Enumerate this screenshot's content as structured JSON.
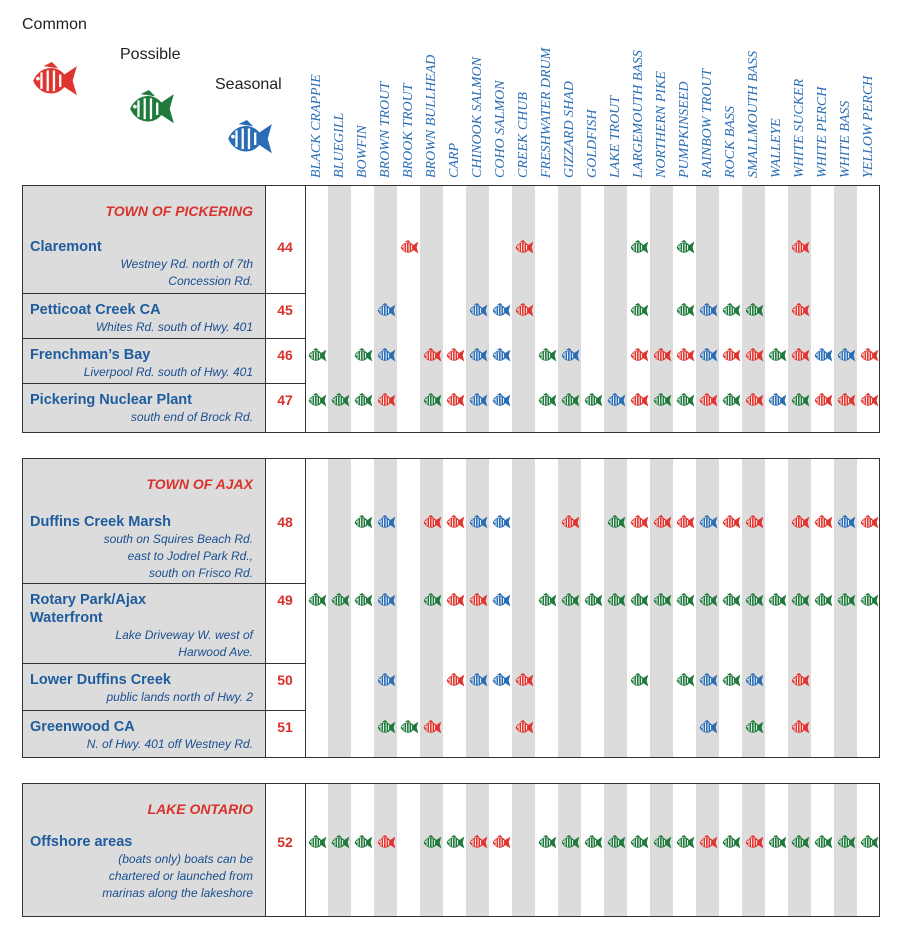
{
  "legend": [
    {
      "label": "Common",
      "color": "#e0352f"
    },
    {
      "label": "Possible",
      "color": "#1f7a3c"
    },
    {
      "label": "Seasonal",
      "color": "#2a6db4"
    }
  ],
  "species": [
    "BLACK CRAPPIE",
    "BLUEGILL",
    "BOWFIN",
    "BROWN TROUT",
    "BROOK TROUT",
    "BROWN BULLHEAD",
    "CARP",
    "CHINOOK SALMON",
    "COHO SALMON",
    "CREEK CHUB",
    "FRESHWATER DRUM",
    "GIZZARD SHAD",
    "GOLDFISH",
    "LAKE TROUT",
    "LARGEMOUTH BASS",
    "NORTHERN PIKE",
    "PUMPKINSEED",
    "RAINBOW TROUT",
    "ROCK BASS",
    "SMALLMOUTH BASS",
    "WALLEYE",
    "WHITE SUCKER",
    "WHITE PERCH",
    "WHITE BASS",
    "YELLOW PERCH"
  ],
  "sections": [
    {
      "title": "TOWN OF PICKERING",
      "rows": [
        {
          "name": [
            "Claremont"
          ],
          "description": [
            "Westney Rd. north of 7th",
            "Concession Rd."
          ],
          "number": 44,
          "fish": [
            null,
            null,
            null,
            null,
            "Common",
            null,
            null,
            null,
            null,
            "Common",
            null,
            null,
            null,
            null,
            "Possible",
            null,
            "Possible",
            null,
            null,
            null,
            null,
            "Common",
            null,
            null,
            null
          ]
        },
        {
          "name": [
            "Petticoat Creek CA"
          ],
          "description": [
            "Whites Rd. south of Hwy. 401"
          ],
          "number": 45,
          "fish": [
            null,
            null,
            null,
            "Seasonal",
            null,
            null,
            null,
            "Seasonal",
            "Seasonal",
            "Common",
            null,
            null,
            null,
            null,
            "Possible",
            null,
            "Possible",
            "Seasonal",
            "Possible",
            "Possible",
            null,
            "Common",
            null,
            null,
            null
          ]
        },
        {
          "name": [
            "Frenchman’s Bay"
          ],
          "description": [
            "Liverpool Rd. south of Hwy. 401"
          ],
          "number": 46,
          "fish": [
            "Possible",
            null,
            "Possible",
            "Seasonal",
            null,
            "Common",
            "Common",
            "Seasonal",
            "Seasonal",
            null,
            "Possible",
            "Seasonal",
            null,
            null,
            "Common",
            "Common",
            "Common",
            "Seasonal",
            "Common",
            "Common",
            "Possible",
            "Common",
            "Seasonal",
            "Seasonal",
            "Common"
          ]
        },
        {
          "name": [
            "Pickering Nuclear Plant"
          ],
          "description": [
            "south end of Brock Rd."
          ],
          "number": 47,
          "fish": [
            "Possible",
            "Possible",
            "Possible",
            "Common",
            null,
            "Possible",
            "Common",
            "Seasonal",
            "Seasonal",
            null,
            "Possible",
            "Possible",
            "Possible",
            "Seasonal",
            "Common",
            "Possible",
            "Possible",
            "Common",
            "Possible",
            "Common",
            "Seasonal",
            "Possible",
            "Common",
            "Common",
            "Common"
          ]
        }
      ]
    },
    {
      "title": "TOWN OF AJAX",
      "rows": [
        {
          "name": [
            "Duffins Creek Marsh"
          ],
          "description": [
            "south on Squires Beach Rd.",
            "east to Jodrel Park Rd.,",
            "south on Frisco Rd."
          ],
          "number": 48,
          "fish": [
            null,
            null,
            "Possible",
            "Seasonal",
            null,
            "Common",
            "Common",
            "Seasonal",
            "Seasonal",
            null,
            null,
            "Common",
            null,
            "Possible",
            "Common",
            "Common",
            "Common",
            "Seasonal",
            "Common",
            "Common",
            null,
            "Common",
            "Common",
            "Seasonal",
            "Common"
          ]
        },
        {
          "name": [
            "Rotary Park/Ajax",
            "Waterfront"
          ],
          "description": [
            "Lake Driveway W. west of",
            "Harwood Ave."
          ],
          "number": 49,
          "fish": [
            "Possible",
            "Possible",
            "Possible",
            "Seasonal",
            null,
            "Possible",
            "Common",
            "Common",
            "Seasonal",
            null,
            "Possible",
            "Possible",
            "Possible",
            "Possible",
            "Possible",
            "Possible",
            "Possible",
            "Possible",
            "Possible",
            "Possible",
            "Possible",
            "Possible",
            "Possible",
            "Possible",
            "Possible"
          ]
        },
        {
          "name": [
            "Lower Duffins Creek"
          ],
          "description": [
            "public lands north of Hwy. 2"
          ],
          "number": 50,
          "fish": [
            null,
            null,
            null,
            "Seasonal",
            null,
            null,
            "Common",
            "Seasonal",
            "Seasonal",
            "Common",
            null,
            null,
            null,
            null,
            "Possible",
            null,
            "Possible",
            "Seasonal",
            "Possible",
            "Seasonal",
            null,
            "Common",
            null,
            null,
            null
          ]
        },
        {
          "name": [
            "Greenwood CA"
          ],
          "description": [
            "N. of Hwy. 401 off Westney Rd."
          ],
          "number": 51,
          "fish": [
            null,
            null,
            null,
            "Possible",
            "Possible",
            "Common",
            null,
            null,
            null,
            "Common",
            null,
            null,
            null,
            null,
            null,
            null,
            null,
            "Seasonal",
            null,
            "Possible",
            null,
            "Common",
            null,
            null,
            null
          ]
        }
      ]
    },
    {
      "title": "LAKE ONTARIO",
      "rows": [
        {
          "name": [
            "Offshore areas"
          ],
          "description": [
            "(boats only) boats can be",
            "chartered or launched from",
            "marinas along the lakeshore"
          ],
          "number": 52,
          "fish": [
            "Possible",
            "Possible",
            "Possible",
            "Common",
            null,
            "Possible",
            "Possible",
            "Common",
            "Common",
            null,
            "Possible",
            "Possible",
            "Possible",
            "Possible",
            "Possible",
            "Possible",
            "Possible",
            "Common",
            "Possible",
            "Common",
            "Possible",
            "Possible",
            "Possible",
            "Possible",
            "Possible"
          ]
        }
      ]
    }
  ]
}
